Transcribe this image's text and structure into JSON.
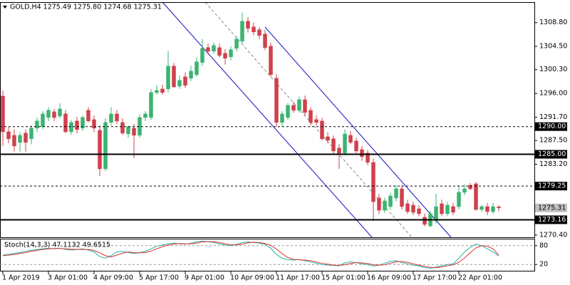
{
  "chart_data": [
    {
      "type": "candlestick",
      "title": "GOLD,H4  1275.49 1275.80 1274.68 1275.31",
      "categories": [
        "1 Apr 2019",
        null,
        null,
        null,
        null,
        null,
        null,
        null,
        "3 Apr 01:00",
        null,
        null,
        null,
        null,
        null,
        null,
        null,
        "4 Apr 09:00",
        null,
        null,
        null,
        null,
        null,
        null,
        null,
        "5 Apr 17:00",
        null,
        null,
        null,
        null,
        null,
        null,
        null,
        "9 Apr 01:00",
        null,
        null,
        null,
        null,
        null,
        null,
        null,
        "10 Apr 09:00",
        null,
        null,
        null,
        null,
        null,
        null,
        null,
        "11 Apr 17:00",
        null,
        null,
        null,
        null,
        null,
        null,
        null,
        "15 Apr 01:00",
        null,
        null,
        null,
        null,
        null,
        null,
        null,
        "16 Apr 09:00",
        null,
        null,
        null,
        null,
        null,
        null,
        null,
        "17 Apr 17:00",
        null,
        null,
        null,
        null,
        null,
        null,
        null,
        "22 Apr 01:00",
        null,
        null,
        null,
        null,
        null,
        null,
        null
      ],
      "open": [
        1295.52,
        1289.07,
        1288.43,
        1287.14,
        1288.82,
        1287.79,
        1289.72,
        1289.98,
        1291.65,
        1292.68,
        1291.91,
        1292.3,
        1289.07,
        1291.01,
        1289.72,
        1292.94,
        1291.27,
        1289.33,
        1282.37,
        1290.75,
        1292.3,
        1290.75,
        1288.69,
        1289.72,
        1288.43,
        1291.65,
        1291.65,
        1296.16,
        1296.81,
        1296.81,
        1300.93,
        1297.32,
        1299.0,
        1298.74,
        1299.39,
        1301.58,
        1304.28,
        1303.64,
        1304.28,
        1303.25,
        1302.61,
        1304.15,
        1305.44,
        1309.05,
        1308.02,
        1307.51,
        1306.73,
        1304.54,
        1298.74,
        1290.75,
        1291.65,
        1293.84,
        1292.94,
        1294.87,
        1292.94,
        1291.27,
        1291.01,
        1288.17,
        1287.79,
        1286.11,
        1285.21,
        1288.43,
        1287.4,
        1285.85,
        1285.21,
        1283.53,
        1277.09,
        1274.89,
        1275.54,
        1277.09,
        1278.76,
        1276.06,
        1275.8,
        1275.15,
        1273.61,
        1272.06,
        1272.96,
        1276.06,
        1274.25,
        1275.54,
        1275.54,
        1278.12,
        1279.41,
        1279.66,
        1275.02,
        1275.54,
        1274.64,
        1275.49
      ],
      "high": [
        1296.5,
        1290.0,
        1289.5,
        1289.0,
        1289.5,
        1290.2,
        1291.6,
        1292.8,
        1293.5,
        1293.2,
        1294.2,
        1293.0,
        1291.2,
        1291.8,
        1292.0,
        1293.5,
        1292.0,
        1290.2,
        1291.5,
        1293.5,
        1293.0,
        1291.5,
        1290.2,
        1290.5,
        1292.2,
        1292.8,
        1296.8,
        1297.5,
        1297.6,
        1303.64,
        1301.5,
        1299.2,
        1299.8,
        1301.0,
        1302.5,
        1305.83,
        1305.0,
        1305.2,
        1305.0,
        1304.0,
        1304.5,
        1306.3,
        1310.6,
        1309.8,
        1308.8,
        1308.0,
        1307.5,
        1305.2,
        1299.5,
        1292.8,
        1294.3,
        1294.5,
        1295.4,
        1295.6,
        1293.5,
        1292.0,
        1291.6,
        1289.0,
        1288.4,
        1286.8,
        1289.5,
        1289.2,
        1288.0,
        1286.5,
        1285.8,
        1284.2,
        1277.8,
        1277.2,
        1278.0,
        1279.4,
        1279.4,
        1276.8,
        1276.4,
        1275.8,
        1274.3,
        1274.8,
        1277.86,
        1276.8,
        1276.4,
        1276.2,
        1279.41,
        1279.6,
        1279.8,
        1280.0,
        1275.8,
        1276.2,
        1276.2,
        1275.8
      ],
      "low": [
        1286.5,
        1287.0,
        1285.5,
        1285.5,
        1285.46,
        1286.8,
        1289.0,
        1289.5,
        1291.0,
        1291.0,
        1291.5,
        1288.8,
        1288.5,
        1288.8,
        1289.2,
        1290.8,
        1289.0,
        1281.08,
        1282.0,
        1290.2,
        1290.5,
        1288.5,
        1288.0,
        1284.3,
        1288.0,
        1291.0,
        1291.2,
        1295.8,
        1295.8,
        1296.2,
        1297.0,
        1296.8,
        1297.0,
        1298.2,
        1299.0,
        1301.0,
        1303.0,
        1303.2,
        1302.5,
        1301.2,
        1302.0,
        1303.6,
        1305.0,
        1307.0,
        1306.5,
        1305.8,
        1303.8,
        1299.0,
        1290.0,
        1290.0,
        1291.2,
        1292.5,
        1292.5,
        1292.0,
        1290.2,
        1290.2,
        1287.5,
        1287.0,
        1285.0,
        1282.37,
        1284.8,
        1286.8,
        1285.2,
        1283.8,
        1283.0,
        1272.96,
        1274.2,
        1274.4,
        1275.0,
        1276.5,
        1275.0,
        1274.2,
        1274.0,
        1273.8,
        1272.0,
        1271.8,
        1272.5,
        1273.8,
        1273.8,
        1274.0,
        1275.0,
        1277.6,
        1278.5,
        1274.8,
        1274.6,
        1274.0,
        1274.2,
        1274.68
      ],
      "close": [
        1289.07,
        1287.79,
        1286.5,
        1288.43,
        1287.14,
        1289.72,
        1291.01,
        1292.3,
        1292.94,
        1291.65,
        1293.2,
        1289.07,
        1290.75,
        1289.46,
        1291.65,
        1291.01,
        1289.72,
        1282.37,
        1290.75,
        1292.3,
        1291.01,
        1288.82,
        1289.98,
        1288.43,
        1291.65,
        1292.3,
        1296.16,
        1296.55,
        1296.16,
        1300.93,
        1297.19,
        1298.36,
        1297.45,
        1300.03,
        1301.71,
        1304.15,
        1303.64,
        1304.67,
        1302.87,
        1302.35,
        1303.9,
        1305.83,
        1309.05,
        1307.76,
        1307.12,
        1306.47,
        1304.28,
        1299.39,
        1290.75,
        1292.3,
        1293.84,
        1292.94,
        1294.87,
        1292.55,
        1290.75,
        1290.75,
        1287.79,
        1287.53,
        1285.59,
        1285.21,
        1288.69,
        1287.14,
        1285.59,
        1284.56,
        1283.53,
        1276.44,
        1274.89,
        1276.57,
        1277.47,
        1278.76,
        1275.54,
        1274.64,
        1274.51,
        1274.25,
        1272.32,
        1274.25,
        1275.54,
        1274.25,
        1275.8,
        1274.51,
        1278.12,
        1278.76,
        1278.76,
        1275.02,
        1275.54,
        1274.64,
        1275.54,
        1275.31
      ],
      "up_color": "#3cb371",
      "down_color": "#d0404c",
      "ylim": [
        1270.0,
        1312.5
      ],
      "yticks": [
        {
          "value": 1308.8,
          "label": "1308.80"
        },
        {
          "value": 1304.5,
          "label": "1304.50"
        },
        {
          "value": 1300.3,
          "label": "1300.30"
        },
        {
          "value": 1296.0,
          "label": "1296.00"
        },
        {
          "value": 1291.7,
          "label": "1291.70"
        },
        {
          "value": 1287.5,
          "label": "1287.50"
        },
        {
          "value": 1283.2,
          "label": "1283.20"
        },
        {
          "value": 1270.4,
          "label": "1270.40"
        }
      ],
      "levels": [
        {
          "value": 1290.0,
          "label": "1290.00",
          "style": "dashed"
        },
        {
          "value": 1285.0,
          "label": "1285.00",
          "style": "solid"
        },
        {
          "value": 1279.25,
          "label": "1279.25",
          "style": "dashed"
        },
        {
          "value": 1273.16,
          "label": "1273.16",
          "style": "solid"
        }
      ]
    },
    {
      "type": "line",
      "title": "Stoch(14,3,3) 47.1132 49.6515",
      "ylim": [
        0,
        100
      ],
      "yticks": [
        20,
        80
      ],
      "grid": true,
      "series": [
        {
          "color": "#20b2aa",
          "values": [
            50,
            52,
            55,
            58,
            62,
            65,
            68,
            70,
            72,
            70,
            72,
            68,
            66,
            68,
            70,
            66,
            60,
            45,
            40,
            48,
            60,
            62,
            58,
            55,
            58,
            62,
            70,
            78,
            82,
            86,
            88,
            86,
            85,
            88,
            92,
            95,
            93,
            90,
            86,
            82,
            80,
            84,
            90,
            92,
            90,
            88,
            84,
            72,
            52,
            40,
            35,
            34,
            36,
            32,
            28,
            24,
            20,
            18,
            17,
            16,
            25,
            28,
            26,
            22,
            20,
            15,
            18,
            24,
            30,
            32,
            26,
            22,
            18,
            15,
            10,
            8,
            12,
            16,
            20,
            22,
            40,
            60,
            75,
            85,
            80,
            70,
            60,
            47.1132
          ]
        },
        {
          "color": "#e0302c",
          "values": [
            48,
            50,
            52,
            55,
            58,
            62,
            65,
            68,
            70,
            71,
            71,
            70,
            69,
            68,
            68,
            68,
            65,
            57,
            48,
            44,
            50,
            56,
            60,
            58,
            57,
            58,
            63,
            70,
            77,
            82,
            85,
            87,
            86,
            86,
            88,
            92,
            93,
            93,
            90,
            86,
            83,
            82,
            85,
            89,
            91,
            90,
            87,
            81,
            69,
            55,
            42,
            36,
            35,
            34,
            32,
            28,
            24,
            21,
            18,
            17,
            19,
            23,
            26,
            25,
            23,
            19,
            18,
            19,
            24,
            29,
            29,
            27,
            22,
            18,
            14,
            11,
            10,
            12,
            16,
            19,
            27,
            41,
            58,
            73,
            80,
            78,
            70,
            49.6515
          ]
        }
      ]
    }
  ]
}
